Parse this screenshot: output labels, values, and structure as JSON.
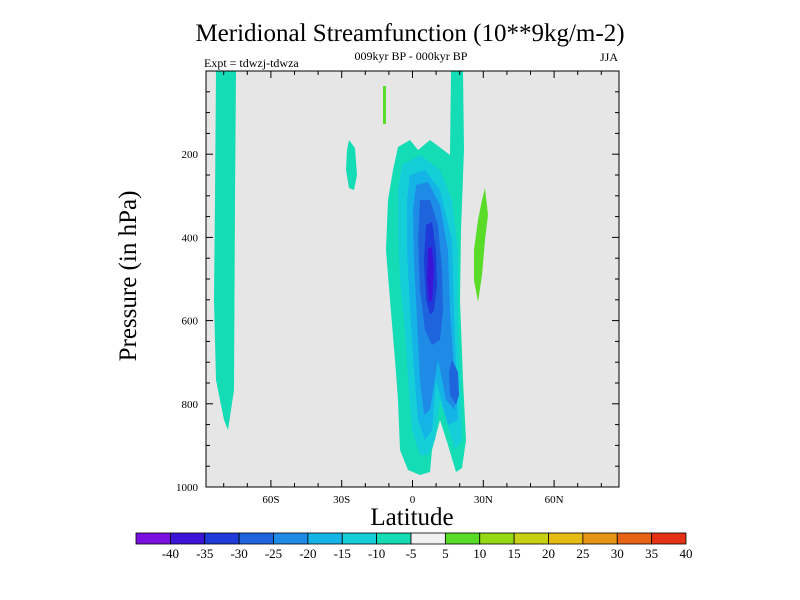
{
  "chart_data": {
    "type": "contour",
    "title": "Meridional Streamfunction (10**9kg/m-2)",
    "subtitle": "009kyr BP - 000kyr BP",
    "left_label": "Expt = tdwzj-tdwza",
    "right_label": "JJA",
    "xlabel": "Latitude",
    "ylabel": "Pressure (in hPa)",
    "x_ticks": [
      {
        "value": -60,
        "label": "60S"
      },
      {
        "value": -30,
        "label": "30S"
      },
      {
        "value": 0,
        "label": "0"
      },
      {
        "value": 30,
        "label": "30N"
      },
      {
        "value": 60,
        "label": "60N"
      }
    ],
    "y_ticks": [
      {
        "value": 200,
        "label": "200"
      },
      {
        "value": 400,
        "label": "400"
      },
      {
        "value": 600,
        "label": "600"
      },
      {
        "value": 800,
        "label": "800"
      },
      {
        "value": 1000,
        "label": "1000"
      }
    ],
    "xlim": [
      -87.5,
      87.5
    ],
    "ylim": [
      1000,
      0
    ],
    "background_color": "#e6e6e6",
    "contour_levels": [
      -40,
      -35,
      -30,
      -25,
      -20,
      -15,
      -10,
      -5,
      5,
      10,
      15,
      20,
      25,
      30,
      35,
      40
    ],
    "colorbar_labels": [
      "-40",
      "-35",
      "-30",
      "-25",
      "-20",
      "-15",
      "-10",
      "-5",
      "5",
      "10",
      "15",
      "20",
      "25",
      "30",
      "35",
      "40"
    ],
    "colorbar_colors": [
      "#7a10e0",
      "#3c14d8",
      "#1e3ad8",
      "#1e64dc",
      "#1e8ce6",
      "#14b4e6",
      "#14cfd8",
      "#14dcb4",
      "#f0f0f0",
      "#58dc28",
      "#96d814",
      "#c8d014",
      "#e6bc14",
      "#e69614",
      "#e66414",
      "#e63214"
    ],
    "regions": [
      {
        "name": "sh-cell-60s",
        "min_value": -10,
        "max_value": -5,
        "lat_range": [
          -82,
          -74
        ],
        "pressure_range": [
          0,
          860
        ]
      },
      {
        "name": "tropical-cell-core",
        "min_value": -35,
        "max_value": -30,
        "lat_range": [
          3,
          8
        ],
        "pressure_range": [
          390,
          640
        ]
      },
      {
        "name": "tropical-cell",
        "min_value": -35,
        "max_value": -5,
        "lat_range": [
          -13,
          22
        ],
        "pressure_range": [
          120,
          970
        ]
      },
      {
        "name": "sh-upper-blob",
        "min_value": -10,
        "max_value": -5,
        "lat_range": [
          -20,
          -16
        ],
        "pressure_range": [
          160,
          290
        ]
      },
      {
        "name": "nh-positive-blob",
        "min_value": 5,
        "max_value": 10,
        "lat_range": [
          26,
          32
        ],
        "pressure_range": [
          285,
          555
        ]
      },
      {
        "name": "upper-positive-streak",
        "min_value": 5,
        "max_value": 10,
        "lat_range": [
          -11,
          -9
        ],
        "pressure_range": [
          0,
          130
        ]
      }
    ]
  }
}
